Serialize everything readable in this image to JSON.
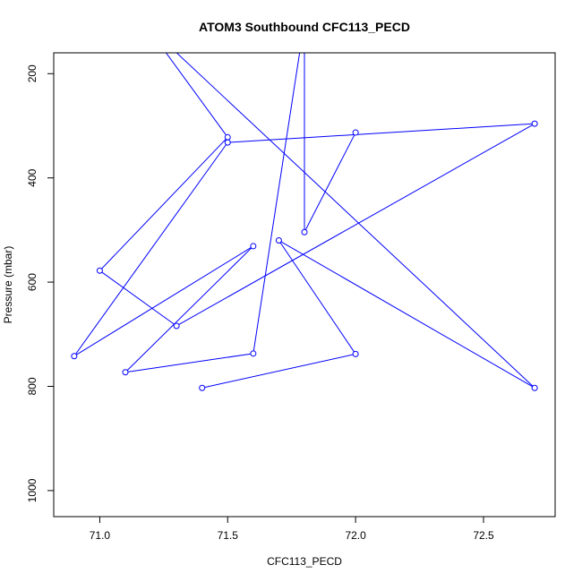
{
  "chart_data": {
    "type": "line",
    "title": "ATOM3 Southbound CFC113_PECD",
    "xlabel": "CFC113_PECD",
    "ylabel": "Pressure (mbar)",
    "xlim": [
      70.82,
      72.78
    ],
    "ylim": [
      1050,
      160
    ],
    "y_inverted": true,
    "x_ticks": [
      71.0,
      71.5,
      72.0,
      72.5
    ],
    "x_tick_labels": [
      "71.0",
      "71.5",
      "72.0",
      "72.5"
    ],
    "y_ticks": [
      200,
      400,
      600,
      800,
      1000
    ],
    "y_tick_labels": [
      "200",
      "400",
      "600",
      "800",
      "1000"
    ],
    "grid": false,
    "legend": "none",
    "series": [
      {
        "color": "#0000ff",
        "marker": "open-circle",
        "points": [
          {
            "x": 71.4,
            "y": 803
          },
          {
            "x": 72.0,
            "y": 738
          },
          {
            "x": 71.7,
            "y": 520
          },
          {
            "x": 72.7,
            "y": 803
          },
          {
            "x": 71.17,
            "y": 100
          },
          {
            "x": 71.5,
            "y": 322
          },
          {
            "x": 71.0,
            "y": 578
          },
          {
            "x": 71.3,
            "y": 684
          },
          {
            "x": 72.7,
            "y": 296
          },
          {
            "x": 71.5,
            "y": 332
          },
          {
            "x": 70.9,
            "y": 742
          },
          {
            "x": 71.6,
            "y": 531
          },
          {
            "x": 71.1,
            "y": 773
          },
          {
            "x": 71.6,
            "y": 737
          },
          {
            "x": 71.8,
            "y": 100
          },
          {
            "x": 71.8,
            "y": 504
          },
          {
            "x": 72.0,
            "y": 313
          }
        ]
      }
    ]
  }
}
